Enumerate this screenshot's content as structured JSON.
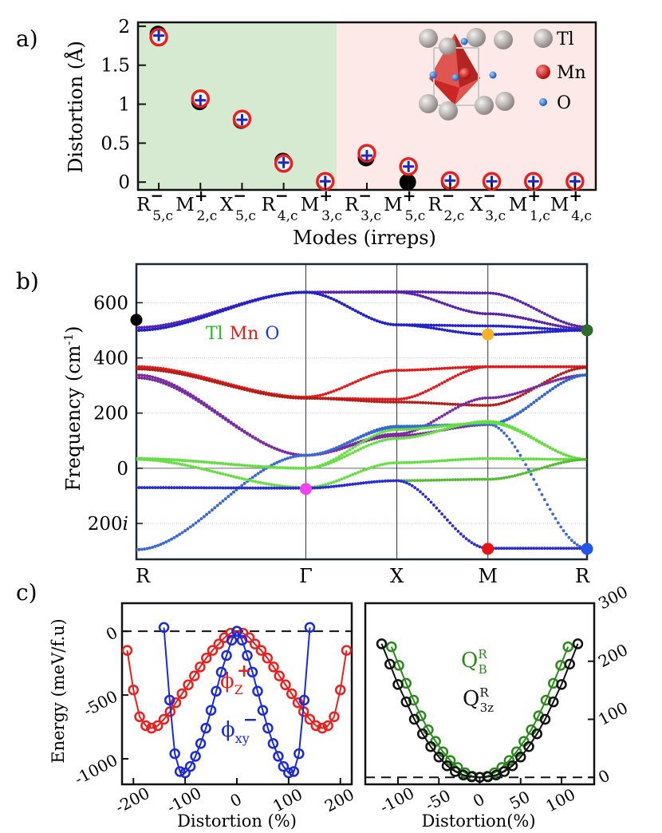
{
  "panels": [
    {
      "letter": "a)",
      "chart_data": {
        "type": "scatter",
        "title": "",
        "xlabel": "Modes (irreps)",
        "ylabel": "Distortion (Å)",
        "ylim": [
          -0.1,
          2.05
        ],
        "yticks": [
          "0",
          "0.5",
          "1",
          "1.5",
          "2"
        ],
        "region_colors": {
          "left": "#d6ead2",
          "right": "#fde9e8"
        },
        "modes": [
          {
            "base": "R",
            "sign": "−",
            "sub": "5,c"
          },
          {
            "base": "M",
            "sign": "+",
            "sub": "2,c"
          },
          {
            "base": "X",
            "sign": "−",
            "sub": "5,c"
          },
          {
            "base": "R",
            "sign": "−",
            "sub": "4,c"
          },
          {
            "base": "M",
            "sign": "+",
            "sub": "3,c"
          },
          {
            "base": "R",
            "sign": "−",
            "sub": "3,c"
          },
          {
            "base": "M",
            "sign": "+",
            "sub": "5,c"
          },
          {
            "base": "R",
            "sign": "−",
            "sub": "2,c"
          },
          {
            "base": "X",
            "sign": "−",
            "sub": "3,c"
          },
          {
            "base": "M",
            "sign": "+",
            "sub": "1,c"
          },
          {
            "base": "M",
            "sign": "+",
            "sub": "4,c"
          }
        ],
        "series": [
          {
            "name": "black",
            "color": "#000000",
            "values": [
              1.9,
              1.03,
              0.79,
              0.27,
              0.0,
              0.31,
              0.0,
              0.0,
              0.0,
              0.0,
              0.0
            ]
          },
          {
            "name": "red",
            "color": "#e8201e",
            "values": [
              1.86,
              1.07,
              0.81,
              0.24,
              0.01,
              0.37,
              0.2,
              0.02,
              0.01,
              0.01,
              0.01
            ]
          },
          {
            "name": "blue",
            "color": "#1626c9",
            "values": [
              1.88,
              1.05,
              0.8,
              0.25,
              0.01,
              0.34,
              0.2,
              0.02,
              0.01,
              0.01,
              0.01
            ]
          }
        ],
        "legend": [
          {
            "label": "Tl",
            "color": "#b9b4b1"
          },
          {
            "label": "Mn",
            "color": "#e11c1a"
          },
          {
            "label": "O",
            "color": "#2d7fd8"
          }
        ]
      }
    },
    {
      "letter": "b)",
      "chart_data": {
        "type": "line",
        "title": "",
        "xlabel": "",
        "ylabel": "Frequency (cm-1)",
        "ylabel_parts": {
          "main": "Frequency (cm",
          "sup": "-1",
          "close": ")"
        },
        "ylim": [
          -330,
          740
        ],
        "yticks": [
          {
            "value": 600,
            "label": "600"
          },
          {
            "value": 400,
            "label": "400"
          },
          {
            "value": 200,
            "label": "200"
          },
          {
            "value": 0,
            "label": "0"
          },
          {
            "value": -200,
            "label": "200i"
          }
        ],
        "kpoints": [
          "R",
          "Γ",
          "X",
          "M",
          "R"
        ],
        "kpos": [
          0,
          0.376,
          0.578,
          0.78,
          1.0
        ],
        "element_labels": [
          {
            "text": "Tl",
            "color": "#22bb22"
          },
          {
            "text": "Mn",
            "color": "#e81a1a"
          },
          {
            "text": "O",
            "color": "#1a3ad6"
          }
        ],
        "bands": [
          {
            "color": "#5a22a8",
            "points": [
              [
                0,
                510
              ],
              [
                0.376,
                638
              ],
              [
                0.578,
                640
              ],
              [
                0.78,
                635
              ],
              [
                1.0,
                512
              ]
            ]
          },
          {
            "color": "#5a22a8",
            "points": [
              [
                0,
                500
              ],
              [
                0.376,
                638
              ],
              [
                0.578,
                638
              ],
              [
                0.78,
                560
              ],
              [
                1.0,
                505
              ]
            ]
          },
          {
            "color": "#2222cc",
            "points": [
              [
                0,
                500
              ],
              [
                0.376,
                638
              ],
              [
                0.578,
                520
              ],
              [
                0.78,
                516
              ],
              [
                1.0,
                500
              ]
            ]
          },
          {
            "color": "#2222cc",
            "points": [
              [
                0,
                500
              ],
              [
                0.376,
                638
              ],
              [
                0.578,
                520
              ],
              [
                0.78,
                485
              ],
              [
                1.0,
                500
              ]
            ]
          },
          {
            "color": "#e01a1a",
            "points": [
              [
                0,
                368
              ],
              [
                0.376,
                258
              ],
              [
                0.578,
                355
              ],
              [
                0.78,
                368
              ],
              [
                1.0,
                368
              ]
            ]
          },
          {
            "color": "#e01a1a",
            "points": [
              [
                0,
                360
              ],
              [
                0.376,
                254
              ],
              [
                0.578,
                250
              ],
              [
                0.78,
                368
              ],
              [
                1.0,
                368
              ]
            ]
          },
          {
            "color": "#b0201a",
            "points": [
              [
                0,
                360
              ],
              [
                0.376,
                254
              ],
              [
                0.578,
                240
              ],
              [
                0.78,
                228
              ],
              [
                1.0,
                365
              ]
            ]
          },
          {
            "color": "#7a2aa0",
            "points": [
              [
                0,
                338
              ],
              [
                0.376,
                47
              ],
              [
                0.578,
                124
              ],
              [
                0.78,
                255
              ],
              [
                1.0,
                338
              ]
            ]
          },
          {
            "color": "#7a2aa0",
            "points": [
              [
                0,
                328
              ],
              [
                0.376,
                47
              ],
              [
                0.578,
                118
              ],
              [
                0.78,
                158
              ],
              [
                1.0,
                338
              ]
            ]
          },
          {
            "color": "#2a6ad0",
            "points": [
              [
                0,
                -295
              ],
              [
                0.376,
                47
              ],
              [
                0.578,
                152
              ],
              [
                0.78,
                160
              ],
              [
                1.0,
                338
              ]
            ]
          },
          {
            "color": "#3a6ad0",
            "points": [
              [
                0,
                -295
              ],
              [
                0.376,
                47
              ],
              [
                0.578,
                148
              ],
              [
                0.78,
                160
              ],
              [
                1.0,
                -290
              ]
            ]
          },
          {
            "color": "#66dd44",
            "points": [
              [
                0,
                35
              ],
              [
                0.376,
                0
              ],
              [
                0.578,
                108
              ],
              [
                0.78,
                170
              ],
              [
                1.0,
                32
              ]
            ]
          },
          {
            "color": "#66dd44",
            "points": [
              [
                0,
                35
              ],
              [
                0.376,
                0
              ],
              [
                0.578,
                140
              ],
              [
                0.78,
                165
              ],
              [
                1.0,
                32
              ]
            ]
          },
          {
            "color": "#66dd44",
            "points": [
              [
                0,
                32
              ],
              [
                0.376,
                -70
              ],
              [
                0.578,
                20
              ],
              [
                0.78,
                35
              ],
              [
                1.0,
                32
              ]
            ]
          },
          {
            "color": "#55bb33",
            "points": [
              [
                0,
                -70
              ],
              [
                0.376,
                -72
              ],
              [
                0.578,
                -45
              ],
              [
                0.78,
                -40
              ],
              [
                1.0,
                32
              ]
            ]
          },
          {
            "color": "#2a2ad6",
            "points": [
              [
                0,
                -70
              ],
              [
                0.376,
                -72
              ],
              [
                0.578,
                -45
              ],
              [
                0.78,
                -290
              ],
              [
                1.0,
                -290
              ]
            ]
          }
        ],
        "markers": [
          {
            "k": 0,
            "value": 538,
            "color": "#000000"
          },
          {
            "k": 0.376,
            "value": -75,
            "color": "#ee44ee"
          },
          {
            "k": 0.78,
            "value": 485,
            "color": "#f6b226"
          },
          {
            "k": 0.78,
            "value": -292,
            "color": "#ee1111"
          },
          {
            "k": 1.0,
            "value": 500,
            "color": "#2d6b2a"
          },
          {
            "k": 1.0,
            "value": -292,
            "color": "#2255ee"
          }
        ]
      }
    },
    {
      "letter": "c)",
      "chart_data": [
        {
          "type": "line",
          "title": "",
          "xlabel": "Distortion (%)",
          "ylabel": "Energy (meV/f.u)",
          "xlim": [
            -222,
            222
          ],
          "ylim": [
            -1200,
            220
          ],
          "xticks": [
            "-200",
            "-100",
            "0",
            "100",
            "200"
          ],
          "yticks": [
            "0",
            "-500",
            "-1000"
          ],
          "series": [
            {
              "name": "ϕZ+",
              "label_main": "ϕ",
              "label_sub": "Z",
              "label_sup": "+",
              "color": "#e8201e",
              "x": [
                -212,
                -200,
                -188,
                -176,
                -165,
                -153,
                -141,
                -129,
                -118,
                -106,
                -94,
                -82,
                -71,
                -59,
                -47,
                -35,
                -24,
                -12,
                0,
                12,
                24,
                35,
                47,
                59,
                71,
                82,
                94,
                106,
                118,
                129,
                141,
                153,
                165,
                176,
                188,
                200,
                212
              ],
              "values": [
                -150,
                -460,
                -670,
                -740,
                -760,
                -740,
                -690,
                -630,
                -560,
                -490,
                -420,
                -350,
                -280,
                -210,
                -150,
                -100,
                -50,
                -15,
                0,
                -15,
                -50,
                -100,
                -150,
                -210,
                -280,
                -350,
                -420,
                -490,
                -560,
                -630,
                -690,
                -740,
                -760,
                -740,
                -670,
                -460,
                -150
              ]
            },
            {
              "name": "ϕxy−",
              "label_main": "ϕ",
              "label_sub": "xy",
              "label_sup": "−",
              "color": "#1a2ad6",
              "x": [
                -141,
                -130,
                -120,
                -110,
                -100,
                -90,
                -80,
                -70,
                -60,
                -50,
                -40,
                -30,
                -20,
                -10,
                0,
                10,
                20,
                30,
                40,
                50,
                60,
                70,
                80,
                90,
                100,
                110,
                120,
                130,
                141
              ],
              "values": [
                30,
                -540,
                -960,
                -1100,
                -1110,
                -1060,
                -980,
                -880,
                -760,
                -620,
                -470,
                -320,
                -190,
                -70,
                0,
                -70,
                -190,
                -320,
                -470,
                -620,
                -760,
                -880,
                -980,
                -1060,
                -1110,
                -1100,
                -960,
                -540,
                30
              ]
            }
          ]
        },
        {
          "type": "line",
          "title": "",
          "xlabel": "Distortion(%)",
          "ylabel": "",
          "xlim": [
            -140,
            140
          ],
          "ylim": [
            -12,
            300
          ],
          "xticks": [
            "-100",
            "-50",
            "0",
            "50",
            "100"
          ],
          "yticks": [
            "0",
            "100",
            "200",
            "300"
          ],
          "series": [
            {
              "name": "QRB",
              "label_main": "Q",
              "label_sub": "B",
              "label_sup": "R",
              "color": "#2a8a1a",
              "x": [
                -108,
                -99,
                -90,
                -81,
                -72,
                -63,
                -54,
                -45,
                -36,
                -27,
                -18,
                -9,
                0,
                9,
                18,
                27,
                36,
                45,
                54,
                63,
                72,
                81,
                90,
                99,
                108
              ],
              "values": [
                225,
                193,
                162,
                133,
                106,
                82,
                62,
                44,
                29,
                17,
                8,
                2,
                0,
                2,
                8,
                17,
                29,
                44,
                62,
                82,
                106,
                133,
                162,
                193,
                225
              ]
            },
            {
              "name": "QR3z",
              "label_main": "Q",
              "label_sub": "3z",
              "label_sup": "R",
              "color": "#111111",
              "x": [
                -120,
                -110,
                -100,
                -90,
                -80,
                -70,
                -60,
                -50,
                -40,
                -30,
                -20,
                -10,
                0,
                10,
                20,
                30,
                40,
                50,
                60,
                70,
                80,
                90,
                100,
                110,
                120
              ],
              "values": [
                230,
                195,
                160,
                130,
                100,
                75,
                53,
                35,
                20,
                10,
                4,
                1,
                0,
                1,
                4,
                10,
                20,
                35,
                53,
                75,
                100,
                130,
                160,
                195,
                230
              ]
            }
          ]
        }
      ]
    }
  ]
}
